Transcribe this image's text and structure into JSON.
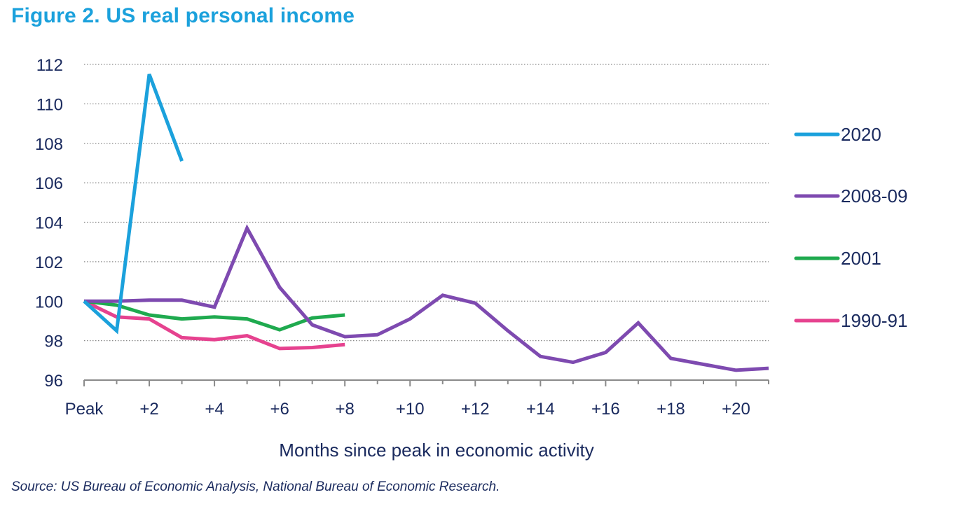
{
  "title": "Figure 2. US real personal income",
  "source": "Source: US Bureau of Economic Analysis, National Bureau of Economic Research.",
  "colors": {
    "title": "#1ba1dc",
    "text": "#1a2a5e",
    "grid": "#8a8a8a"
  },
  "chart_data": {
    "type": "line",
    "title": "Figure 2. US real personal income",
    "xlabel": "Months since peak in economic activity",
    "ylabel": "",
    "xlim": [
      0,
      21
    ],
    "ylim": [
      96,
      112
    ],
    "x_ticks": [
      {
        "value": 0,
        "label": "Peak"
      },
      {
        "value": 2,
        "label": "+2"
      },
      {
        "value": 4,
        "label": "+4"
      },
      {
        "value": 6,
        "label": "+6"
      },
      {
        "value": 8,
        "label": "+8"
      },
      {
        "value": 10,
        "label": "+10"
      },
      {
        "value": 12,
        "label": "+12"
      },
      {
        "value": 14,
        "label": "+14"
      },
      {
        "value": 16,
        "label": "+16"
      },
      {
        "value": 18,
        "label": "+18"
      },
      {
        "value": 20,
        "label": "+20"
      }
    ],
    "y_ticks": [
      96,
      98,
      100,
      102,
      104,
      106,
      108,
      110,
      112
    ],
    "grid": "horizontal dotted",
    "legend_position": "right",
    "series": [
      {
        "name": "2020",
        "color": "#1ba1dc",
        "x": [
          0,
          1,
          2,
          3
        ],
        "values": [
          100,
          98.5,
          111.5,
          107.1
        ]
      },
      {
        "name": "2008-09",
        "color": "#7e4ab0",
        "x": [
          0,
          1,
          2,
          3,
          4,
          5,
          6,
          7,
          8,
          9,
          10,
          11,
          12,
          13,
          14,
          15,
          16,
          17,
          18,
          19,
          20,
          21
        ],
        "values": [
          100,
          100,
          100.05,
          100.05,
          99.7,
          103.7,
          100.7,
          98.8,
          98.2,
          98.3,
          99.1,
          100.3,
          99.9,
          98.5,
          97.2,
          96.9,
          97.4,
          98.9,
          97.1,
          96.8,
          96.5,
          96.6
        ]
      },
      {
        "name": "2001",
        "color": "#1faa4f",
        "x": [
          0,
          1,
          2,
          3,
          4,
          5,
          6,
          7,
          8
        ],
        "values": [
          100,
          99.8,
          99.3,
          99.1,
          99.2,
          99.1,
          98.55,
          99.15,
          99.3
        ]
      },
      {
        "name": "1990-91",
        "color": "#e6428f",
        "x": [
          0,
          1,
          2,
          3,
          4,
          5,
          6,
          7,
          8
        ],
        "values": [
          100,
          99.2,
          99.1,
          98.15,
          98.05,
          98.25,
          97.6,
          97.65,
          97.8
        ]
      }
    ]
  }
}
